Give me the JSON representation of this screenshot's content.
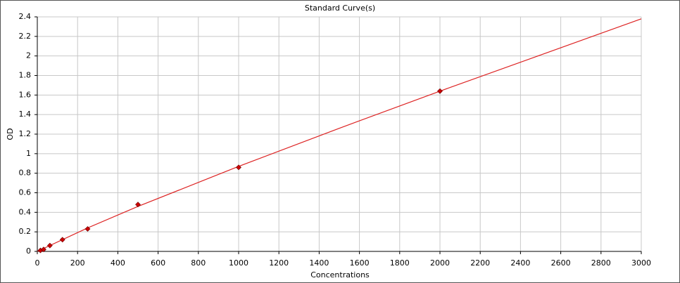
{
  "chart_data": {
    "type": "scatter",
    "title": "Standard Curve(s)",
    "x_label": "Concentrations",
    "y_label": "OD",
    "xlim": [
      0,
      3000
    ],
    "xticks": [
      0,
      200,
      400,
      600,
      800,
      1000,
      1200,
      1400,
      1600,
      1800,
      2000,
      2200,
      2400,
      2600,
      2800,
      3000
    ],
    "ylim": [
      0,
      2.4
    ],
    "yticks": [
      0,
      0.2,
      0.4,
      0.6,
      0.8,
      1,
      1.2,
      1.4,
      1.6,
      1.8,
      2,
      2.2,
      2.4
    ],
    "grid": true,
    "points": {
      "color": "#cc0000",
      "x": [
        15.6,
        31.25,
        62.5,
        125,
        250,
        500,
        1000,
        2000
      ],
      "values": [
        0.01,
        0.02,
        0.06,
        0.12,
        0.23,
        0.48,
        0.86,
        1.64
      ]
    },
    "curve": {
      "color": "#dd2222",
      "x": [
        0,
        250,
        500,
        1000,
        1500,
        2000,
        2500,
        3000
      ],
      "values": [
        0,
        0.24,
        0.46,
        0.87,
        1.26,
        1.64,
        2.01,
        2.38
      ]
    }
  }
}
